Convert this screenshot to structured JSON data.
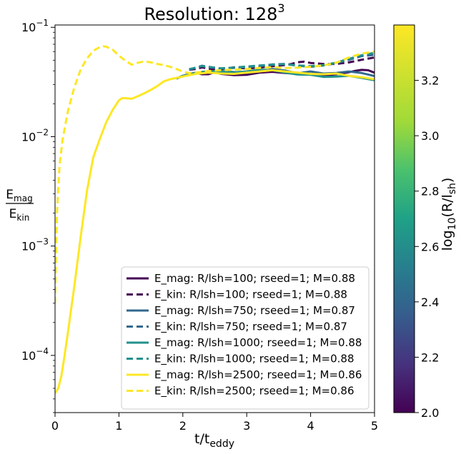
{
  "chart_data": {
    "type": "line",
    "title": "Resolution: 128",
    "title_superscript": "3",
    "xlabel": "t/t",
    "xlabel_subscript": "eddy",
    "ylabel_num": "E",
    "ylabel_num_sub": "mag",
    "ylabel_den": "E",
    "ylabel_den_sub": "kin",
    "xlim": [
      0,
      5
    ],
    "ylim": [
      3e-05,
      0.105
    ],
    "yscale": "log",
    "xticks": [
      "0",
      "1",
      "2",
      "3",
      "4",
      "5"
    ],
    "yticks": [
      {
        "base": "10",
        "exp": "−1",
        "value": 0.1
      },
      {
        "base": "10",
        "exp": "−2",
        "value": 0.01
      },
      {
        "base": "10",
        "exp": "−3",
        "value": 0.001
      },
      {
        "base": "10",
        "exp": "−4",
        "value": 0.0001
      }
    ],
    "legend_position": "lower-right",
    "grid": false,
    "colorbar": {
      "label_prefix": "log",
      "label_sub": "10",
      "label_paren": "(R/l",
      "label_sub2": "sh",
      "label_close": ")",
      "range": [
        2.0,
        3.4
      ],
      "ticks": [
        "2.0",
        "2.2",
        "2.4",
        "2.6",
        "2.8",
        "3.0",
        "3.2"
      ],
      "colormap": "viridis"
    },
    "series": [
      {
        "name": "E_mag: R/lsh=100; rseed=1; M=0.88",
        "color": "#440154",
        "dash": false,
        "x": [
          1.9,
          2.0,
          2.1,
          2.2,
          2.3,
          2.4,
          2.5,
          2.6,
          2.8,
          3.0,
          3.2,
          3.4,
          3.6,
          3.8,
          4.0,
          4.2,
          4.4,
          4.6,
          4.7,
          4.8,
          4.9,
          5.0
        ],
        "y": [
          0.034,
          0.036,
          0.0372,
          0.0385,
          0.0372,
          0.0372,
          0.0388,
          0.0375,
          0.0365,
          0.0368,
          0.0385,
          0.0392,
          0.0382,
          0.0375,
          0.0372,
          0.0362,
          0.0372,
          0.0388,
          0.04,
          0.0408,
          0.0405,
          0.0385
        ]
      },
      {
        "name": "E_kin: R/lsh=100; rseed=1; M=0.88",
        "color": "#440154",
        "dash": true,
        "x": [
          2.1,
          2.2,
          2.3,
          2.4,
          2.5,
          2.6,
          2.7,
          2.8,
          3.0,
          3.2,
          3.4,
          3.6,
          3.7,
          3.8,
          3.9,
          4.0,
          4.2,
          4.4,
          4.6,
          4.8,
          5.0
        ],
        "y": [
          0.041,
          0.0415,
          0.043,
          0.042,
          0.041,
          0.0415,
          0.0422,
          0.043,
          0.042,
          0.0428,
          0.044,
          0.0452,
          0.0462,
          0.048,
          0.0485,
          0.0472,
          0.0462,
          0.0462,
          0.0478,
          0.0505,
          0.053
        ]
      },
      {
        "name": "E_mag: R/lsh=750; rseed=1; M=0.87",
        "color": "#31688e",
        "dash": false,
        "x": [
          1.9,
          2.0,
          2.2,
          2.4,
          2.6,
          2.8,
          3.0,
          3.2,
          3.4,
          3.6,
          3.8,
          4.0,
          4.2,
          4.4,
          4.6,
          4.8,
          5.0
        ],
        "y": [
          0.034,
          0.036,
          0.0382,
          0.0398,
          0.0398,
          0.039,
          0.0385,
          0.0395,
          0.0415,
          0.0402,
          0.038,
          0.0395,
          0.0378,
          0.0382,
          0.0395,
          0.0382,
          0.0358
        ]
      },
      {
        "name": "E_kin: R/lsh=750; rseed=1; M=0.87",
        "color": "#31688e",
        "dash": true,
        "x": [
          2.1,
          2.2,
          2.3,
          2.4,
          2.6,
          2.8,
          3.0,
          3.2,
          3.4,
          3.6,
          3.8,
          4.0,
          4.2,
          4.4,
          4.6,
          4.8,
          5.0
        ],
        "y": [
          0.0415,
          0.0425,
          0.0445,
          0.0435,
          0.042,
          0.0425,
          0.0432,
          0.0442,
          0.0458,
          0.0462,
          0.0445,
          0.0435,
          0.0448,
          0.047,
          0.0505,
          0.0545,
          0.056
        ]
      },
      {
        "name": "E_mag: R/lsh=1000; rseed=1; M=0.88",
        "color": "#21918c",
        "dash": false,
        "x": [
          1.9,
          2.0,
          2.2,
          2.4,
          2.6,
          2.8,
          3.0,
          3.2,
          3.4,
          3.6,
          3.8,
          4.0,
          4.2,
          4.4,
          4.6,
          4.8,
          5.0
        ],
        "y": [
          0.034,
          0.036,
          0.0385,
          0.0395,
          0.0395,
          0.0388,
          0.0395,
          0.041,
          0.0405,
          0.0385,
          0.037,
          0.0368,
          0.0352,
          0.0355,
          0.036,
          0.0345,
          0.0328
        ]
      },
      {
        "name": "E_kin: R/lsh=1000; rseed=1; M=0.88",
        "color": "#21918c",
        "dash": true,
        "x": [
          2.1,
          2.2,
          2.3,
          2.4,
          2.6,
          2.8,
          3.0,
          3.2,
          3.4,
          3.6,
          3.8,
          4.0,
          4.2,
          4.4,
          4.6,
          4.8,
          5.0
        ],
        "y": [
          0.0412,
          0.0428,
          0.0442,
          0.0432,
          0.0422,
          0.0428,
          0.0438,
          0.0448,
          0.0455,
          0.046,
          0.0448,
          0.0442,
          0.0452,
          0.0475,
          0.0515,
          0.0555,
          0.0585
        ]
      },
      {
        "name": "E_mag: R/lsh=2500; rseed=1; M=0.86",
        "color": "#fde725",
        "dash": false,
        "x": [
          0.0,
          0.05,
          0.1,
          0.15,
          0.2,
          0.3,
          0.4,
          0.5,
          0.6,
          0.7,
          0.8,
          0.9,
          1.0,
          1.05,
          1.1,
          1.2,
          1.3,
          1.4,
          1.5,
          1.6,
          1.7,
          1.8,
          1.9,
          2.0,
          2.2,
          2.4,
          2.6,
          2.8,
          3.0,
          3.2,
          3.4,
          3.6,
          3.8,
          4.0,
          4.2,
          4.4,
          4.6,
          4.8,
          5.0
        ],
        "y": [
          4.5e-05,
          5e-05,
          6.5e-05,
          0.0001,
          0.00016,
          0.00042,
          0.0012,
          0.0032,
          0.0065,
          0.0095,
          0.0135,
          0.0175,
          0.0215,
          0.0225,
          0.0225,
          0.0222,
          0.0235,
          0.025,
          0.0268,
          0.029,
          0.032,
          0.0335,
          0.0345,
          0.0355,
          0.0375,
          0.0385,
          0.0378,
          0.0375,
          0.0385,
          0.0395,
          0.0405,
          0.0395,
          0.0385,
          0.0375,
          0.0372,
          0.0378,
          0.036,
          0.035,
          0.0335
        ]
      },
      {
        "name": "E_kin: R/lsh=2500; rseed=1; M=0.86",
        "color": "#fde725",
        "dash": true,
        "x": [
          0.0,
          0.03,
          0.07,
          0.12,
          0.2,
          0.3,
          0.4,
          0.5,
          0.6,
          0.7,
          0.75,
          0.8,
          0.9,
          1.0,
          1.1,
          1.2,
          1.3,
          1.4,
          1.5,
          1.6,
          1.7,
          1.8,
          1.9,
          2.0,
          2.1,
          2.2,
          2.4,
          2.6,
          2.8,
          3.0,
          3.2,
          3.4,
          3.6,
          3.8,
          4.0,
          4.2,
          4.4,
          4.6,
          4.8,
          5.0
        ],
        "y": [
          0.0003,
          0.002,
          0.0055,
          0.0095,
          0.017,
          0.028,
          0.041,
          0.052,
          0.061,
          0.066,
          0.0672,
          0.0665,
          0.0625,
          0.055,
          0.0495,
          0.0455,
          0.0475,
          0.0488,
          0.0478,
          0.0462,
          0.0452,
          0.0435,
          0.0415,
          0.0395,
          0.038,
          0.0385,
          0.0398,
          0.0405,
          0.041,
          0.0415,
          0.0425,
          0.0432,
          0.0425,
          0.0428,
          0.0435,
          0.0448,
          0.0475,
          0.053,
          0.0575,
          0.06
        ]
      }
    ]
  }
}
